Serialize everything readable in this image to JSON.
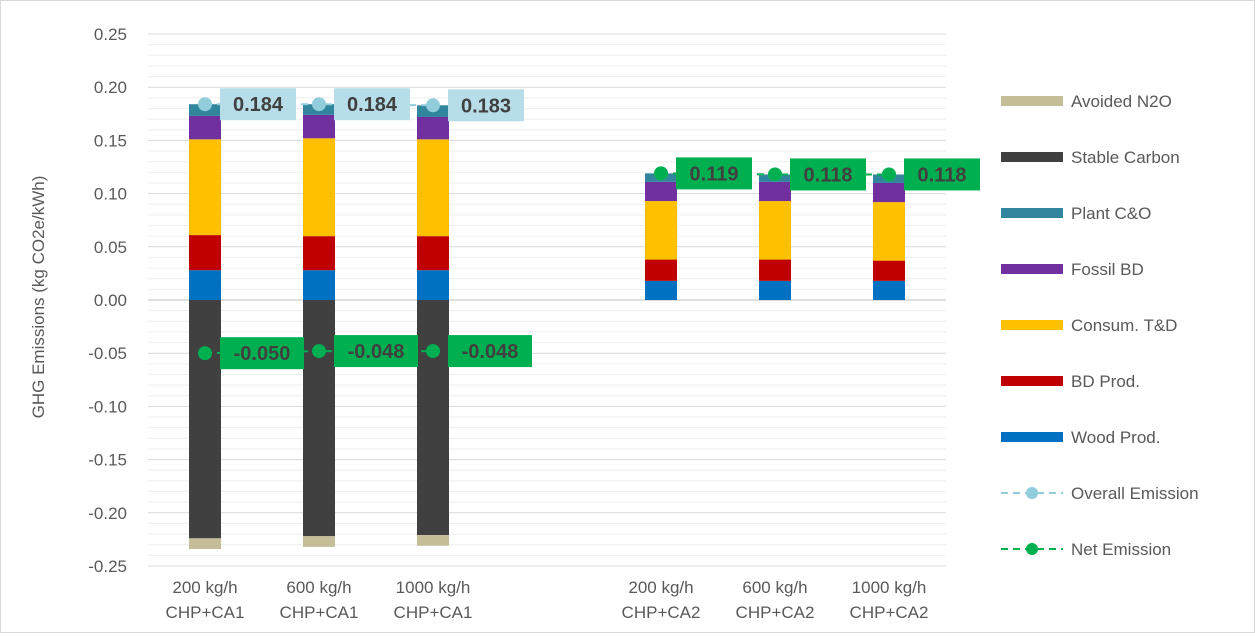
{
  "chart_data": {
    "type": "bar",
    "stacked": true,
    "ylabel": "GHG Emissions (kg CO2e/kWh)",
    "ylim": [
      -0.25,
      0.25
    ],
    "yticks": [
      0.25,
      0.2,
      0.15,
      0.1,
      0.05,
      0.0,
      -0.05,
      -0.1,
      -0.15,
      -0.2,
      -0.25
    ],
    "ytick_labels": [
      "0.25",
      "0.20",
      "0.15",
      "0.10",
      "0.05",
      "0.00",
      "-0.05",
      "-0.10",
      "-0.15",
      "-0.20",
      "-0.25"
    ],
    "grid": true,
    "legend_position": "right",
    "categories": [
      {
        "line1": "200 kg/h",
        "line2": "CHP+CA1"
      },
      {
        "line1": "600 kg/h",
        "line2": "CHP+CA1"
      },
      {
        "line1": "1000 kg/h",
        "line2": "CHP+CA1"
      },
      {
        "line1": "",
        "line2": ""
      },
      {
        "line1": "200 kg/h",
        "line2": "CHP+CA2"
      },
      {
        "line1": "600 kg/h",
        "line2": "CHP+CA2"
      },
      {
        "line1": "1000 kg/h",
        "line2": "CHP+CA2"
      }
    ],
    "series": [
      {
        "name": "Wood Prod.",
        "color": "#0070c0",
        "values": [
          0.028,
          0.028,
          0.028,
          null,
          0.018,
          0.018,
          0.018
        ]
      },
      {
        "name": "BD Prod.",
        "color": "#c00000",
        "values": [
          0.033,
          0.032,
          0.032,
          null,
          0.02,
          0.02,
          0.019
        ]
      },
      {
        "name": "Consum. T&D",
        "color": "#ffc000",
        "values": [
          0.09,
          0.092,
          0.091,
          null,
          0.055,
          0.055,
          0.055
        ]
      },
      {
        "name": "Fossil BD",
        "color": "#7030a0",
        "values": [
          0.022,
          0.022,
          0.021,
          null,
          0.018,
          0.018,
          0.018
        ]
      },
      {
        "name": "Plant C&O",
        "color": "#31859c",
        "values": [
          0.011,
          0.01,
          0.011,
          null,
          0.008,
          0.007,
          0.008
        ]
      },
      {
        "name": "Stable Carbon",
        "color": "#404040",
        "values": [
          -0.224,
          -0.222,
          -0.221,
          null,
          0,
          0,
          0
        ]
      },
      {
        "name": "Avoided N2O",
        "color": "#c4bd97",
        "values": [
          -0.01,
          -0.01,
          -0.01,
          null,
          0,
          0,
          0
        ]
      }
    ],
    "line_series": [
      {
        "name": "Overall Emission",
        "color": "#92cddc",
        "values": [
          0.184,
          0.184,
          0.183,
          null,
          0.119,
          0.118,
          0.118
        ]
      },
      {
        "name": "Net Emission",
        "color": "#00b050",
        "values": [
          -0.05,
          -0.048,
          -0.048,
          null,
          0.119,
          0.118,
          0.118
        ]
      }
    ],
    "data_labels": [
      {
        "category_index": 0,
        "value": 0.184,
        "text": "0.184",
        "style": "overall"
      },
      {
        "category_index": 1,
        "value": 0.184,
        "text": "0.184",
        "style": "overall"
      },
      {
        "category_index": 2,
        "value": 0.183,
        "text": "0.183",
        "style": "overall"
      },
      {
        "category_index": 0,
        "value": -0.05,
        "text": "-0.050",
        "style": "net"
      },
      {
        "category_index": 1,
        "value": -0.048,
        "text": "-0.048",
        "style": "net"
      },
      {
        "category_index": 2,
        "value": -0.048,
        "text": "-0.048",
        "style": "net"
      },
      {
        "category_index": 4,
        "value": 0.119,
        "text": "0.119",
        "style": "net"
      },
      {
        "category_index": 5,
        "value": 0.118,
        "text": "0.118",
        "style": "net"
      },
      {
        "category_index": 6,
        "value": 0.118,
        "text": "0.118",
        "style": "net"
      }
    ],
    "legend": [
      {
        "name": "Avoided N2O",
        "kind": "bar",
        "color": "#c4bd97"
      },
      {
        "name": "Stable Carbon",
        "kind": "bar",
        "color": "#404040"
      },
      {
        "name": "Plant C&O",
        "kind": "bar",
        "color": "#31859c"
      },
      {
        "name": "Fossil BD",
        "kind": "bar",
        "color": "#7030a0"
      },
      {
        "name": "Consum. T&D",
        "kind": "bar",
        "color": "#ffc000"
      },
      {
        "name": "BD Prod.",
        "kind": "bar",
        "color": "#c00000"
      },
      {
        "name": "Wood Prod.",
        "kind": "bar",
        "color": "#0070c0"
      },
      {
        "name": "Overall Emission",
        "kind": "line",
        "color": "#92cddc"
      },
      {
        "name": "Net Emission",
        "kind": "line",
        "color": "#00b050"
      }
    ],
    "label_colors": {
      "overall_box": "#b7dee8",
      "net_box": "#00b050",
      "overall_text": "#404040",
      "net_text": "#404040"
    }
  }
}
